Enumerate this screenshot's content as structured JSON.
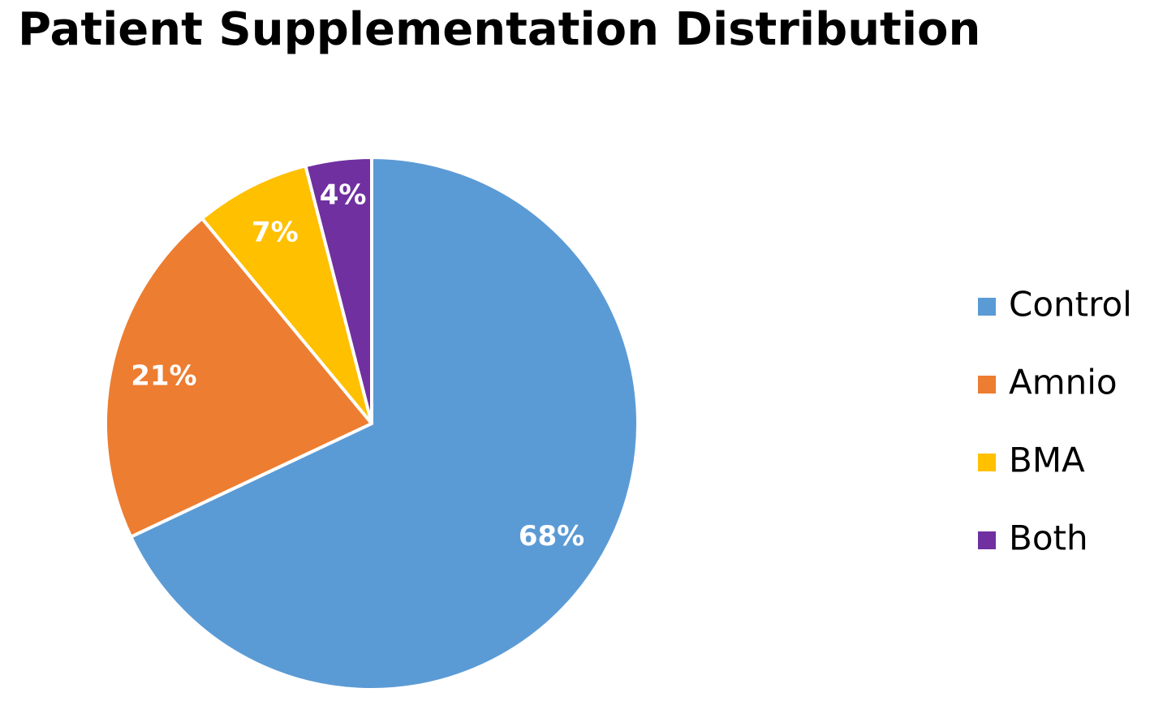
{
  "chart_data": {
    "type": "pie",
    "title": "Patient Supplementation Distribution",
    "categories": [
      "Control",
      "Amnio",
      "BMA",
      "Both"
    ],
    "values": [
      68,
      21,
      7,
      4
    ],
    "value_labels": [
      "68%",
      "21%",
      "7%",
      "4%"
    ],
    "colors": [
      "#5b9bd5",
      "#ed7d31",
      "#ffc000",
      "#7030a0"
    ],
    "legend": "right"
  }
}
